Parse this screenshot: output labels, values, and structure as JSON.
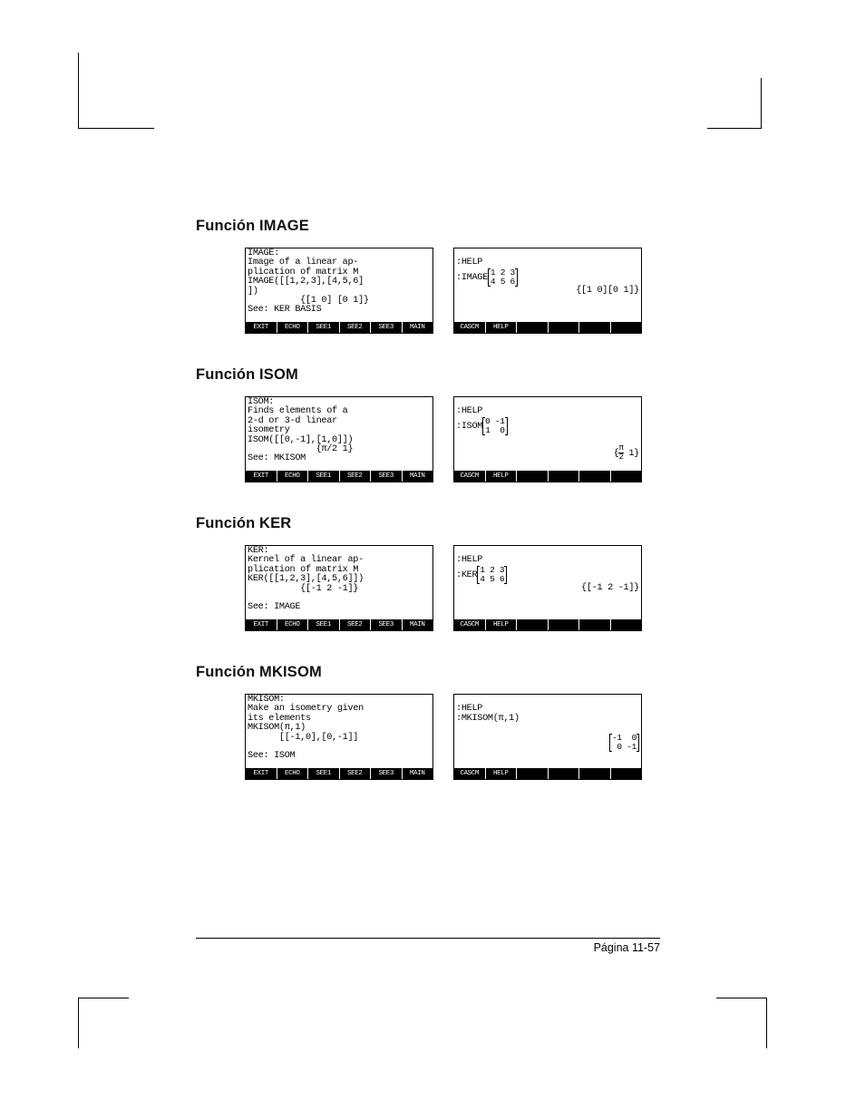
{
  "page": {
    "footer": "Página 11-57"
  },
  "softkeys_help": [
    "EXIT",
    "ECHO",
    "SEE1",
    "SEE2",
    "SEE3",
    "MAIN"
  ],
  "softkeys_cas": [
    "CASCM",
    "HELP",
    "",
    "",
    "",
    ""
  ],
  "sections": {
    "image": {
      "heading": "Función IMAGE",
      "left": "IMAGE:\nImage of a linear ap-\nplication of matrix M\nIMAGE([[1,2,3],[4,5,6]\n])\n          {[1 0] [0 1]}\nSee: KER BASIS",
      "right_l1": ":HELP",
      "right_l2_cmd": ":IMAGE",
      "right_l2_matrix": [
        [
          "1",
          "2",
          "3"
        ],
        [
          "4",
          "5",
          "6"
        ]
      ],
      "right_result": "{[1 0][0 1]}"
    },
    "isom": {
      "heading": "Función ISOM",
      "left": "ISOM:\nFinds elements of a\n2-d or 3-d linear\nisometry\nISOM([[0,-1],[1,0]])\n             {π/2 1}\nSee: MKISOM",
      "right_l1": ":HELP",
      "right_l2_cmd": ":ISOM",
      "right_l2_matrix": [
        [
          "0",
          "-1"
        ],
        [
          "1",
          " 0"
        ]
      ],
      "right_result_pre": "{",
      "right_result_frac_top": "π",
      "right_result_frac_bot": "2",
      "right_result_post": " 1}"
    },
    "ker": {
      "heading": "Función KER",
      "left": "KER:\nKernel of a linear ap-\nplication of matrix M\nKER([[1,2,3],[4,5,6]])\n          {[-1 2 -1]}\n\nSee: IMAGE",
      "right_l1": ":HELP",
      "right_l2_cmd": ":KER",
      "right_l2_matrix": [
        [
          "1",
          "2",
          "3"
        ],
        [
          "4",
          "5",
          "6"
        ]
      ],
      "right_result": "{[-1 2 -1]}"
    },
    "mkisom": {
      "heading": "Función MKISOM",
      "left": "MKISOM:\nMake an isometry given\nits elements\nMKISOM(π,1)\n      [[-1,0],[0,-1]]\n\nSee: ISOM",
      "right_l1": ":HELP",
      "right_l2": ":MKISOM(π,1)",
      "right_result_matrix": [
        [
          "-1",
          " 0"
        ],
        [
          " 0",
          "-1"
        ]
      ]
    }
  }
}
